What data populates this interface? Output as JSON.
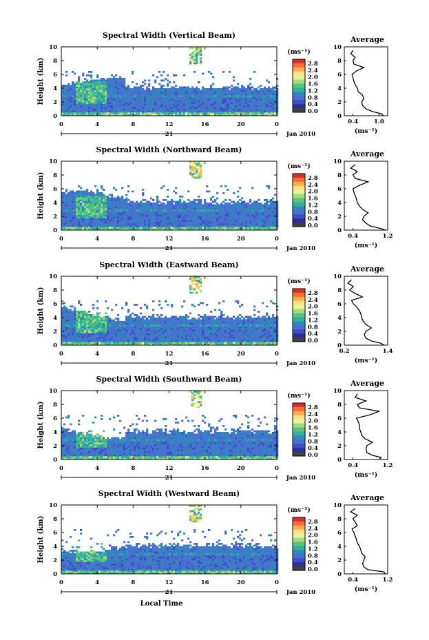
{
  "figure": {
    "xlabel": "Local Time",
    "date_label": "Jan 2010",
    "day_label": "21",
    "ylabel": "Height (km)",
    "colorbar_unit": "(ms⁻¹)",
    "avg_title": "Average",
    "avg_xlabel": "(ms⁻¹)",
    "colorbar_ticks": [
      "2.8",
      "2.4",
      "2.0",
      "1.6",
      "1.2",
      "0.8",
      "0.4",
      "0.0"
    ],
    "colorbar_colors": [
      "#d7302b",
      "#f46d3a",
      "#fdae4b",
      "#fee08b",
      "#e6f598",
      "#a3dc7c",
      "#5cc47a",
      "#2eb3a0",
      "#3288bd",
      "#4a6fd0",
      "#3d4fc9",
      "#2f2f9a",
      "#404040"
    ]
  },
  "chart_data": [
    {
      "type": "heatmap",
      "title": "Spectral Width (Vertical Beam)",
      "x_range": [
        0,
        24
      ],
      "x_ticks": [
        "0",
        "4",
        "8",
        "12",
        "16",
        "20",
        "0"
      ],
      "ylim": [
        0,
        10
      ],
      "y_ticks": [
        "0",
        "2",
        "4",
        "6",
        "8",
        "10"
      ],
      "colorbar_range": [
        0.0,
        2.8
      ],
      "average_profile": {
        "xlim": [
          0.2,
          1.2
        ],
        "x_ticks": [
          "0.4",
          "1.0"
        ],
        "height_km": [
          0,
          0.3,
          0.6,
          1.0,
          1.5,
          2.0,
          2.5,
          3.0,
          3.5,
          4.0,
          4.5,
          5.0,
          5.5,
          6.0,
          6.5,
          7.0,
          7.5,
          8.0,
          8.5,
          9.0,
          9.5
        ],
        "values": [
          1.1,
          1.05,
          0.85,
          0.7,
          0.62,
          0.6,
          0.65,
          0.62,
          0.52,
          0.5,
          0.45,
          0.42,
          0.4,
          0.38,
          0.48,
          0.65,
          0.42,
          0.4,
          0.45,
          0.35,
          0.4
        ]
      }
    },
    {
      "type": "heatmap",
      "title": "Spectral Width (Northward Beam)",
      "x_range": [
        0,
        24
      ],
      "x_ticks": [
        "0",
        "4",
        "8",
        "12",
        "16",
        "20",
        "0"
      ],
      "ylim": [
        0,
        10
      ],
      "y_ticks": [
        "0",
        "2",
        "4",
        "6",
        "8",
        "10"
      ],
      "colorbar_range": [
        0.0,
        2.8
      ],
      "average_profile": {
        "xlim": [
          0.2,
          1.2
        ],
        "x_ticks": [
          "0.4",
          "1.2"
        ],
        "height_km": [
          0,
          0.3,
          0.6,
          1.0,
          1.5,
          2.0,
          2.5,
          3.0,
          3.5,
          4.0,
          4.5,
          5.0,
          5.5,
          6.0,
          6.5,
          7.0,
          7.5,
          8.0,
          8.5,
          9.0,
          9.5
        ],
        "values": [
          1.15,
          1.0,
          0.8,
          0.7,
          0.62,
          0.65,
          0.75,
          0.62,
          0.55,
          0.5,
          0.48,
          0.45,
          0.42,
          0.4,
          0.55,
          0.75,
          0.45,
          0.4,
          0.5,
          0.35,
          0.45
        ]
      }
    },
    {
      "type": "heatmap",
      "title": "Spectral Width (Eastward Beam)",
      "x_range": [
        0,
        24
      ],
      "x_ticks": [
        "0",
        "4",
        "8",
        "12",
        "16",
        "20",
        "0"
      ],
      "ylim": [
        0,
        10
      ],
      "y_ticks": [
        "0",
        "2",
        "4",
        "6",
        "8",
        "10"
      ],
      "colorbar_range": [
        0.0,
        2.8
      ],
      "average_profile": {
        "xlim": [
          0.2,
          1.4
        ],
        "x_ticks": [
          "0.2",
          "1.4"
        ],
        "height_km": [
          0,
          0.3,
          0.6,
          1.0,
          1.5,
          2.0,
          2.5,
          3.0,
          3.5,
          4.0,
          4.5,
          5.0,
          5.5,
          6.0,
          6.5,
          7.0,
          7.5,
          8.0,
          8.5,
          9.0,
          9.5
        ],
        "values": [
          1.3,
          1.2,
          0.95,
          0.8,
          0.75,
          0.8,
          0.95,
          0.8,
          0.72,
          0.68,
          0.66,
          0.62,
          0.55,
          0.45,
          0.4,
          0.7,
          0.5,
          0.35,
          0.45,
          0.3,
          0.4
        ]
      }
    },
    {
      "type": "heatmap",
      "title": "Spectral Width (Southward Beam)",
      "x_range": [
        0,
        24
      ],
      "x_ticks": [
        "0",
        "4",
        "8",
        "12",
        "16",
        "20",
        "0"
      ],
      "ylim": [
        0,
        10
      ],
      "y_ticks": [
        "0",
        "2",
        "4",
        "6",
        "8",
        "10"
      ],
      "colorbar_range": [
        0.0,
        2.8
      ],
      "average_profile": {
        "xlim": [
          0.2,
          1.2
        ],
        "x_ticks": [
          "0.4",
          "1.2"
        ],
        "height_km": [
          0,
          0.3,
          0.6,
          1.0,
          1.5,
          2.0,
          2.5,
          3.0,
          3.5,
          4.0,
          4.5,
          5.0,
          5.5,
          6.0,
          6.5,
          7.0,
          7.5,
          8.0,
          8.5,
          9.0,
          9.5
        ],
        "values": [
          1.0,
          1.05,
          0.85,
          0.72,
          0.7,
          0.72,
          0.85,
          0.68,
          0.6,
          0.58,
          0.55,
          0.55,
          0.52,
          0.48,
          0.8,
          1.0,
          0.55,
          0.5,
          0.7,
          0.45,
          0.5
        ]
      }
    },
    {
      "type": "heatmap",
      "title": "Spectral Width (Westward Beam)",
      "x_range": [
        0,
        24
      ],
      "x_ticks": [
        "0",
        "4",
        "8",
        "12",
        "16",
        "20",
        "0"
      ],
      "ylim": [
        0,
        10
      ],
      "y_ticks": [
        "0",
        "2",
        "4",
        "6",
        "8",
        "10"
      ],
      "colorbar_range": [
        0.0,
        2.8
      ],
      "average_profile": {
        "xlim": [
          0.2,
          1.2
        ],
        "x_ticks": [
          "0.4",
          "1.2"
        ],
        "height_km": [
          0,
          0.3,
          0.6,
          1.0,
          1.5,
          2.0,
          2.5,
          3.0,
          3.5,
          4.0,
          4.5,
          5.0,
          5.5,
          6.0,
          6.5,
          7.0,
          7.5,
          8.0,
          8.5,
          9.0,
          9.5
        ],
        "values": [
          1.15,
          1.1,
          0.75,
          0.65,
          0.62,
          0.65,
          0.68,
          0.6,
          0.58,
          0.55,
          0.5,
          0.48,
          0.45,
          0.42,
          0.38,
          0.5,
          0.45,
          0.4,
          0.5,
          0.35,
          0.45
        ]
      }
    }
  ]
}
